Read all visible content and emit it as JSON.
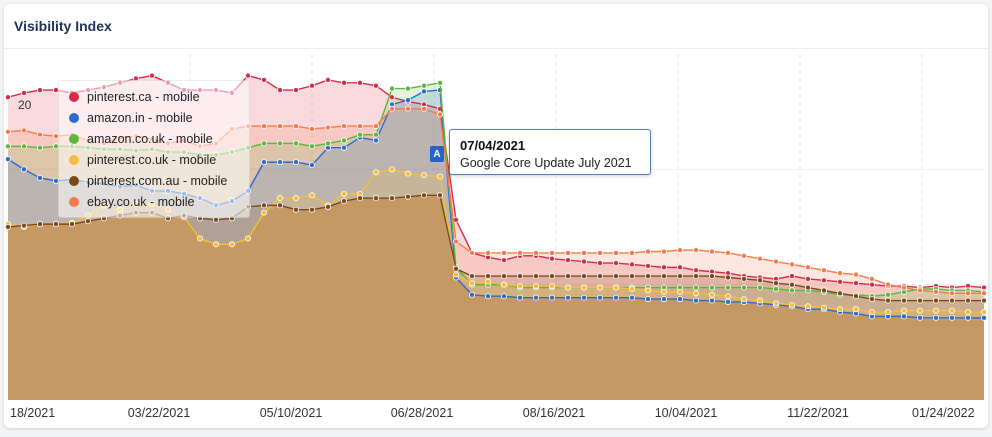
{
  "title": "Visibility Index",
  "chart_data": {
    "type": "area",
    "y_tick_labels": [
      "20"
    ],
    "x_tick_labels": [
      "18/2021",
      "03/22/2021",
      "05/10/2021",
      "06/28/2021",
      "08/16/2021",
      "10/04/2021",
      "11/22/2021",
      "01/24/2022"
    ],
    "grid": true,
    "legend_position": "top-left",
    "series": [
      {
        "name": "pinterest.ca - mobile",
        "color": "#d62c4a",
        "values": [
          21.0,
          21.3,
          21.5,
          21.5,
          21.3,
          21.5,
          21.7,
          22.0,
          22.3,
          22.5,
          22.0,
          21.5,
          21.5,
          21.5,
          21.3,
          22.5,
          22.2,
          21.5,
          21.5,
          21.8,
          22.2,
          22.0,
          22.0,
          21.8,
          21.0,
          20.7,
          20.5,
          20.2,
          12.5,
          10.2,
          9.9,
          9.7,
          10.0,
          10.0,
          9.8,
          9.7,
          9.6,
          9.5,
          9.5,
          9.4,
          9.3,
          9.2,
          9.2,
          9.0,
          8.9,
          8.8,
          8.6,
          8.5,
          8.4,
          8.6,
          8.4,
          8.3,
          8.2,
          8.1,
          8.0,
          7.9,
          7.9,
          7.8,
          7.9,
          7.8,
          7.9,
          7.8
        ]
      },
      {
        "name": "amazon.in - mobile",
        "color": "#2f6ad0",
        "values": [
          16.7,
          16.0,
          15.4,
          15.2,
          15.3,
          15.1,
          15.0,
          14.8,
          14.9,
          14.5,
          14.5,
          14.3,
          14.0,
          13.5,
          13.8,
          14.5,
          16.5,
          16.5,
          16.5,
          16.3,
          17.5,
          17.5,
          18.2,
          18.0,
          20.5,
          20.8,
          21.4,
          21.5,
          8.5,
          7.3,
          7.2,
          7.2,
          7.1,
          7.1,
          7.1,
          7.1,
          7.1,
          7.1,
          7.1,
          7.1,
          7.0,
          7.0,
          7.0,
          6.9,
          6.9,
          6.8,
          6.8,
          6.7,
          6.6,
          6.5,
          6.3,
          6.3,
          6.1,
          6.0,
          5.8,
          5.8,
          5.8,
          5.7,
          5.7,
          5.7,
          5.7,
          5.7
        ]
      },
      {
        "name": "amazon.co.uk - mobile",
        "color": "#5cb83a",
        "values": [
          17.6,
          17.6,
          17.5,
          17.6,
          17.6,
          17.5,
          17.4,
          17.4,
          17.3,
          17.4,
          17.2,
          17.2,
          17.0,
          17.0,
          17.2,
          17.5,
          17.8,
          17.8,
          17.8,
          17.6,
          17.8,
          18.0,
          18.4,
          18.4,
          21.6,
          21.6,
          21.8,
          22.0,
          9.2,
          8.0,
          8.0,
          8.0,
          7.8,
          7.8,
          7.8,
          7.8,
          7.8,
          7.8,
          7.8,
          7.8,
          7.8,
          7.8,
          7.8,
          7.8,
          7.8,
          7.8,
          7.8,
          7.8,
          7.7,
          7.6,
          7.6,
          7.5,
          7.3,
          7.3,
          7.2,
          7.3,
          7.5,
          7.7,
          7.7,
          7.6,
          7.6,
          7.5
        ]
      },
      {
        "name": "pinterest.co.uk - mobile",
        "color": "#f7bd3a",
        "values": [
          12.2,
          12.0,
          12.2,
          12.2,
          12.3,
          12.8,
          13.5,
          13.2,
          13.6,
          13.6,
          13.2,
          12.7,
          11.2,
          10.8,
          10.8,
          11.2,
          13.0,
          14.0,
          14.0,
          14.2,
          13.5,
          14.3,
          14.3,
          15.8,
          16.0,
          15.7,
          15.6,
          15.5,
          8.7,
          8.1,
          8.2,
          8.0,
          7.9,
          7.9,
          7.9,
          7.8,
          7.8,
          7.8,
          7.8,
          7.7,
          7.6,
          7.5,
          7.5,
          7.4,
          7.3,
          7.2,
          7.0,
          6.9,
          6.7,
          6.6,
          6.5,
          6.4,
          6.3,
          6.3,
          6.1,
          6.1,
          6.2,
          6.2,
          6.2,
          6.2,
          6.1,
          6.1
        ]
      },
      {
        "name": "pinterest.com.au - mobile",
        "color": "#7a4a1c",
        "values": [
          12.0,
          12.1,
          12.2,
          12.2,
          12.2,
          12.4,
          12.6,
          12.8,
          13.0,
          13.0,
          12.6,
          12.8,
          12.6,
          12.5,
          12.6,
          13.4,
          13.5,
          13.5,
          13.2,
          13.2,
          13.4,
          13.8,
          14.0,
          14.0,
          14.0,
          14.1,
          14.2,
          14.2,
          9.1,
          8.6,
          8.6,
          8.6,
          8.6,
          8.6,
          8.6,
          8.6,
          8.6,
          8.6,
          8.6,
          8.6,
          8.6,
          8.6,
          8.6,
          8.6,
          8.6,
          8.5,
          8.4,
          8.3,
          8.1,
          8.0,
          7.8,
          7.6,
          7.4,
          7.2,
          7.0,
          6.9,
          6.9,
          6.9,
          6.9,
          6.9,
          6.9,
          6.9
        ]
      },
      {
        "name": "ebay.co.uk - mobile",
        "color": "#f77b4a",
        "values": [
          18.6,
          18.7,
          18.4,
          18.3,
          18.4,
          18.0,
          17.8,
          18.2,
          18.3,
          18.1,
          17.8,
          18.0,
          17.6,
          17.8,
          18.8,
          19.0,
          19.0,
          19.0,
          19.0,
          18.8,
          18.9,
          19.0,
          19.0,
          19.0,
          20.2,
          20.2,
          20.2,
          19.8,
          11.0,
          10.2,
          10.2,
          10.2,
          10.2,
          10.2,
          10.2,
          10.2,
          10.2,
          10.2,
          10.2,
          10.2,
          10.3,
          10.3,
          10.4,
          10.4,
          10.3,
          10.2,
          10.0,
          9.8,
          9.6,
          9.4,
          9.2,
          9.0,
          8.8,
          8.7,
          8.4,
          8.0,
          7.8,
          7.6,
          7.5,
          7.4,
          7.4,
          7.4
        ]
      }
    ]
  },
  "annotation": {
    "marker": "A",
    "date": "07/04/2021",
    "text": "Google Core Update July 2021"
  }
}
